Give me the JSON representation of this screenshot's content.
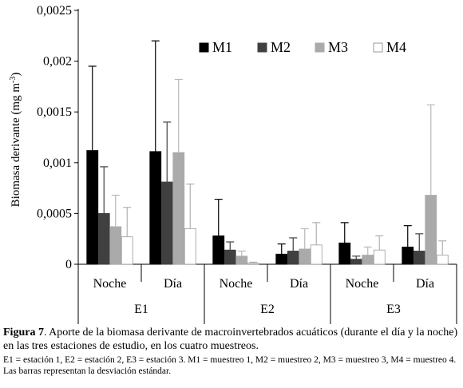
{
  "chart_data": {
    "type": "bar",
    "ylabel_main": "Biomasa derivante (mg m",
    "ylabel_exp": "-3",
    "ylabel_close": ")",
    "ylim": [
      0,
      0.0025
    ],
    "yticks": [
      "0",
      "0,0005",
      "0,001",
      "0,0015",
      "0,002",
      "0,0025"
    ],
    "error_bars": true,
    "legend_position": "top-right",
    "groups": [
      {
        "station": "E1",
        "periods": [
          "Noche",
          "Día"
        ]
      },
      {
        "station": "E2",
        "periods": [
          "Noche",
          "Día"
        ]
      },
      {
        "station": "E3",
        "periods": [
          "Noche",
          "Día"
        ]
      }
    ],
    "categories": [
      "E1 Noche",
      "E1 Día",
      "E2 Noche",
      "E2 Día",
      "E3 Noche",
      "E3 Día"
    ],
    "series": [
      {
        "name": "M1",
        "color": "#000000",
        "values": [
          0.00112,
          0.00111,
          0.00028,
          0.0001,
          0.00021,
          0.00017
        ],
        "errors": [
          0.00083,
          0.00109,
          0.00036,
          0.0001,
          0.0002,
          0.00021
        ]
      },
      {
        "name": "M2",
        "color": "#404040",
        "values": [
          0.0005,
          0.00081,
          0.00014,
          0.00013,
          5e-05,
          0.00013
        ],
        "errors": [
          0.00046,
          0.00059,
          8e-05,
          0.00013,
          3e-05,
          0.00017
        ]
      },
      {
        "name": "M3",
        "color": "#aaaaaa",
        "values": [
          0.00037,
          0.0011,
          8e-05,
          0.00015,
          9e-05,
          0.00068
        ],
        "errors": [
          0.00031,
          0.00072,
          5e-05,
          0.0002,
          8e-05,
          0.00089
        ]
      },
      {
        "name": "M4",
        "color": "#ffffff",
        "values": [
          0.00027,
          0.00035,
          1e-05,
          0.00019,
          0.00014,
          9e-05
        ],
        "errors": [
          0.00029,
          0.00044,
          1e-05,
          0.00022,
          0.00014,
          0.00014
        ]
      }
    ]
  },
  "caption": {
    "label": "Figura 7",
    "text": ". Aporte de la biomasa derivante de macroinvertebrados acuáticos (durante el día y la noche) en las tres estaciones de estudio, en los cuatro muestreos.",
    "note": "E1 = estación 1, E2 = estación 2, E3 = estación 3. M1 = muestreo 1, M2 = muestreo 2, M3 = muestreo 3, M4 = muestreo 4. Las barras representan la desviación estándar."
  }
}
